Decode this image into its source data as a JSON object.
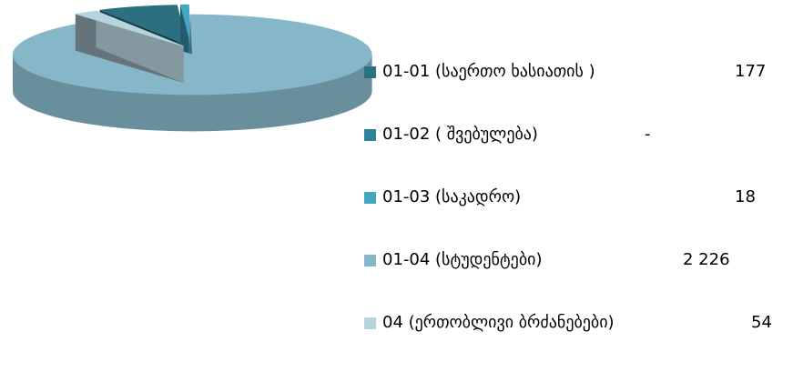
{
  "chart_data": {
    "type": "pie",
    "title": "",
    "legend_position": "right",
    "series": [
      {
        "name": "",
        "slices": [
          {
            "label": "01-01 (საერთო ხასიათის )",
            "value": 177,
            "value_text": "177",
            "color": "#2c6f80"
          },
          {
            "label": "01-02 ( შვებულება)",
            "value": 0,
            "value_text": "-",
            "color": "#2f8399"
          },
          {
            "label": "01-03 (საკადრო)",
            "value": 18,
            "value_text": "18",
            "color": "#44a6c2"
          },
          {
            "label": "01-04 (სტუდენტები)",
            "value": 2226,
            "value_text": "2 226",
            "color": "#86b7c8"
          },
          {
            "label": "04  (ერთობლივი ბრძანებები)",
            "value": 54,
            "value_text": "54",
            "color": "#b7d3dd"
          }
        ]
      }
    ]
  }
}
